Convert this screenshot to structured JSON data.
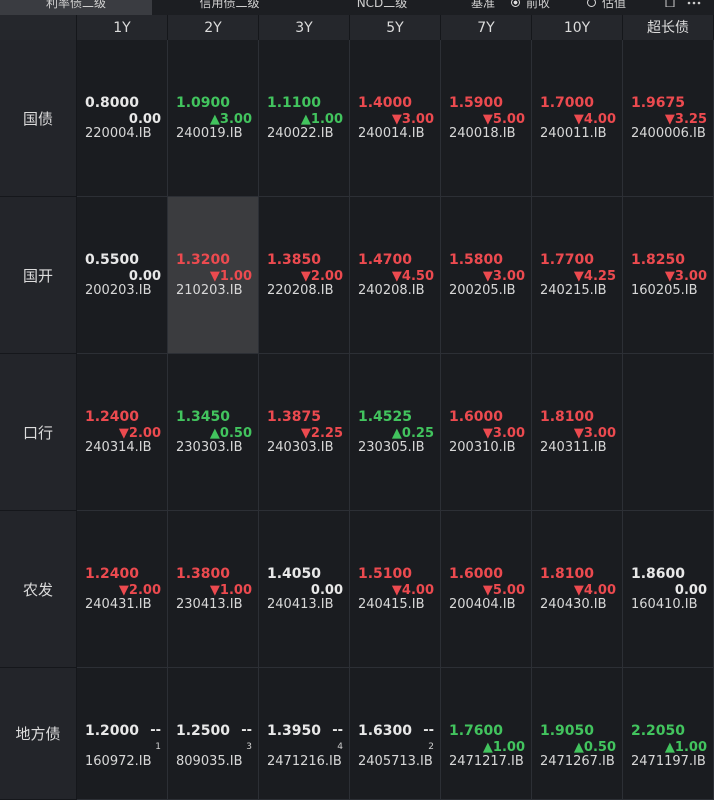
{
  "toolbar": {
    "tabs": [
      "利率债二级",
      "信用债二级",
      "NCD二级"
    ],
    "benchmark_label": "基准",
    "options": [
      "前收",
      "估值"
    ],
    "active_tab": 0,
    "checked_option": 0
  },
  "table": {
    "columns": [
      "1Y",
      "2Y",
      "3Y",
      "5Y",
      "7Y",
      "10Y",
      "超长债"
    ],
    "selected": [
      1,
      1
    ],
    "rows": [
      {
        "label": "国债",
        "cells": [
          {
            "yield": "0.8000",
            "change": "0.00",
            "code": "220004.IB",
            "tone": "flat"
          },
          {
            "yield": "1.0900",
            "change": "▲3.00",
            "code": "240019.IB",
            "tone": "green"
          },
          {
            "yield": "1.1100",
            "change": "▲1.00",
            "code": "240022.IB",
            "tone": "green"
          },
          {
            "yield": "1.4000",
            "change": "▼3.00",
            "code": "240014.IB",
            "tone": "red"
          },
          {
            "yield": "1.5900",
            "change": "▼5.00",
            "code": "240018.IB",
            "tone": "red"
          },
          {
            "yield": "1.7000",
            "change": "▼4.00",
            "code": "240011.IB",
            "tone": "red"
          },
          {
            "yield": "1.9675",
            "change": "▼3.25",
            "code": "2400006.IB",
            "tone": "red"
          }
        ]
      },
      {
        "label": "国开",
        "cells": [
          {
            "yield": "0.5500",
            "change": "0.00",
            "code": "200203.IB",
            "tone": "flat"
          },
          {
            "yield": "1.3200",
            "change": "▼1.00",
            "code": "210203.IB",
            "tone": "red"
          },
          {
            "yield": "1.3850",
            "change": "▼2.00",
            "code": "220208.IB",
            "tone": "red"
          },
          {
            "yield": "1.4700",
            "change": "▼4.50",
            "code": "240208.IB",
            "tone": "red"
          },
          {
            "yield": "1.5800",
            "change": "▼3.00",
            "code": "200205.IB",
            "tone": "red"
          },
          {
            "yield": "1.7700",
            "change": "▼4.25",
            "code": "240215.IB",
            "tone": "red"
          },
          {
            "yield": "1.8250",
            "change": "▼3.00",
            "code": "160205.IB",
            "tone": "red"
          }
        ]
      },
      {
        "label": "口行",
        "cells": [
          {
            "yield": "1.2400",
            "change": "▼2.00",
            "code": "240314.IB",
            "tone": "red"
          },
          {
            "yield": "1.3450",
            "change": "▲0.50",
            "code": "230303.IB",
            "tone": "green"
          },
          {
            "yield": "1.3875",
            "change": "▼2.25",
            "code": "240303.IB",
            "tone": "red"
          },
          {
            "yield": "1.4525",
            "change": "▲0.25",
            "code": "230305.IB",
            "tone": "green"
          },
          {
            "yield": "1.6000",
            "change": "▼3.00",
            "code": "200310.IB",
            "tone": "red"
          },
          {
            "yield": "1.8100",
            "change": "▼3.00",
            "code": "240311.IB",
            "tone": "red"
          },
          null
        ]
      },
      {
        "label": "农发",
        "cells": [
          {
            "yield": "1.2400",
            "change": "▼2.00",
            "code": "240431.IB",
            "tone": "red"
          },
          {
            "yield": "1.3800",
            "change": "▼1.00",
            "code": "230413.IB",
            "tone": "red"
          },
          {
            "yield": "1.4050",
            "change": "0.00",
            "code": "240413.IB",
            "tone": "flat"
          },
          {
            "yield": "1.5100",
            "change": "▼4.00",
            "code": "240415.IB",
            "tone": "red"
          },
          {
            "yield": "1.6000",
            "change": "▼5.00",
            "code": "200404.IB",
            "tone": "red"
          },
          {
            "yield": "1.8100",
            "change": "▼4.00",
            "code": "240430.IB",
            "tone": "red"
          },
          {
            "yield": "1.8600",
            "change": "0.00",
            "code": "160410.IB",
            "tone": "flat"
          }
        ]
      },
      {
        "label": "地方债",
        "cells": [
          {
            "yield": "1.2000",
            "change": "--",
            "count": "1",
            "code": "160972.IB",
            "tone": "flat"
          },
          {
            "yield": "1.2500",
            "change": "--",
            "count": "3",
            "code": "809035.IB",
            "tone": "flat"
          },
          {
            "yield": "1.3950",
            "change": "--",
            "count": "4",
            "code": "2471216.IB",
            "tone": "flat"
          },
          {
            "yield": "1.6300",
            "change": "--",
            "count": "2",
            "code": "2405713.IB",
            "tone": "flat"
          },
          {
            "yield": "1.7600",
            "change": "▲1.00",
            "code": "2471217.IB",
            "tone": "green"
          },
          {
            "yield": "1.9050",
            "change": "▲0.50",
            "code": "2471267.IB",
            "tone": "green"
          },
          {
            "yield": "2.2050",
            "change": "▲1.00",
            "code": "2471197.IB",
            "tone": "green"
          }
        ]
      }
    ]
  }
}
